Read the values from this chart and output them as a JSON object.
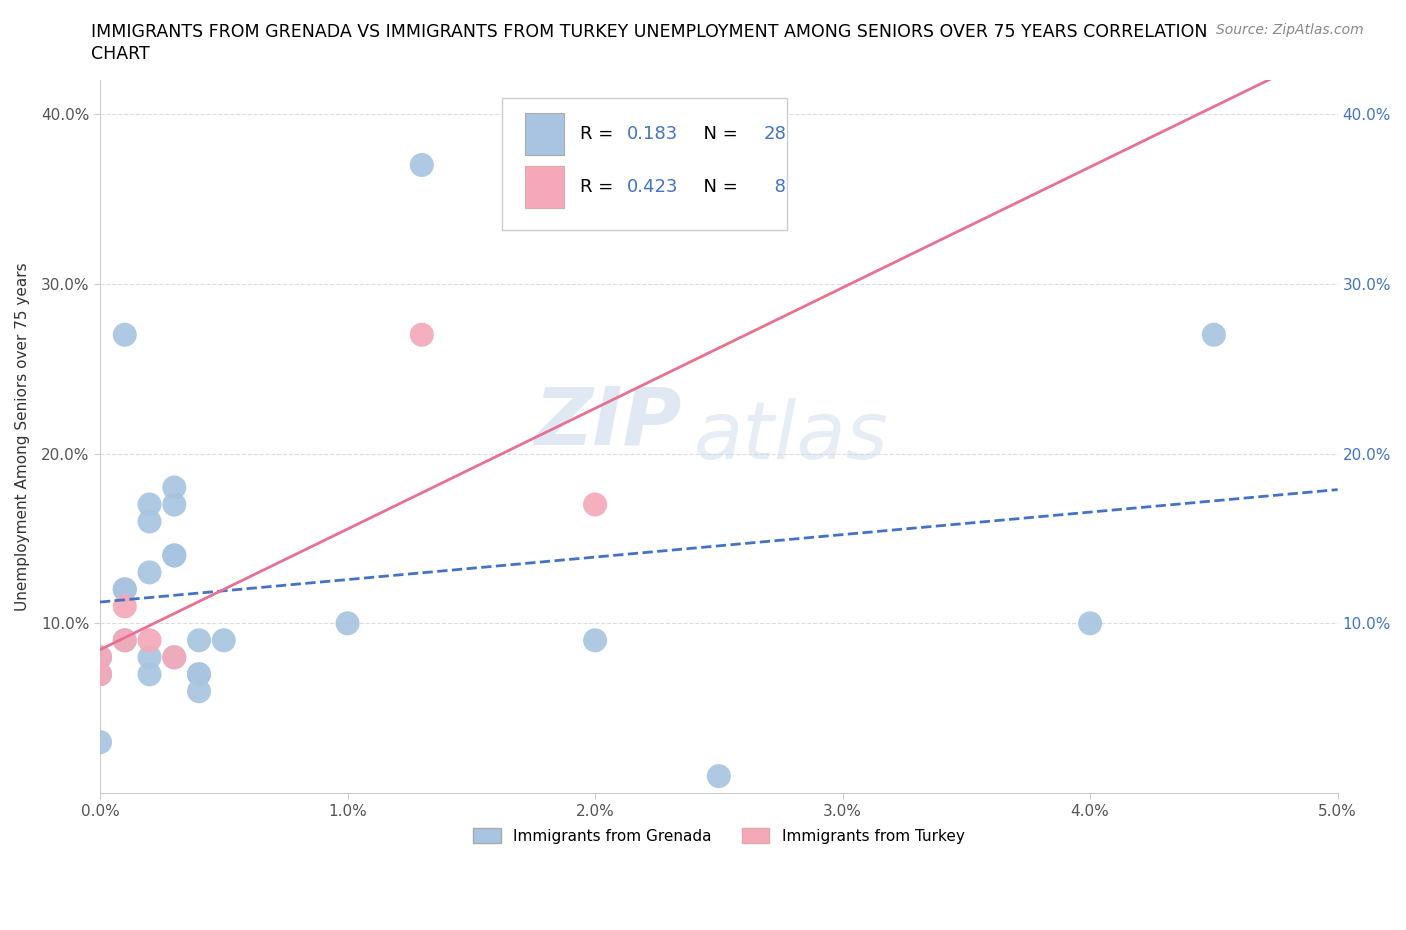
{
  "title_line1": "IMMIGRANTS FROM GRENADA VS IMMIGRANTS FROM TURKEY UNEMPLOYMENT AMONG SENIORS OVER 75 YEARS CORRELATION",
  "title_line2": "CHART",
  "source": "Source: ZipAtlas.com",
  "ylabel": "Unemployment Among Seniors over 75 years",
  "xlim": [
    0.0,
    0.05
  ],
  "ylim": [
    0.0,
    0.42
  ],
  "xticks": [
    0.0,
    0.01,
    0.02,
    0.03,
    0.04,
    0.05
  ],
  "xticklabels": [
    "0.0%",
    "1.0%",
    "2.0%",
    "3.0%",
    "4.0%",
    "5.0%"
  ],
  "yticks": [
    0.1,
    0.2,
    0.3,
    0.4
  ],
  "yticklabels": [
    "10.0%",
    "20.0%",
    "30.0%",
    "40.0%"
  ],
  "grenada_color": "#a8c4e0",
  "turkey_color": "#f4a8b8",
  "grenada_line_color": "#4472c4",
  "turkey_line_color": "#e87090",
  "R_grenada": 0.183,
  "N_grenada": 28,
  "R_turkey": 0.423,
  "N_turkey": 8,
  "watermark_top": "ZIP",
  "watermark_bottom": "atlas",
  "grenada_x": [
    0.0,
    0.0,
    0.0,
    0.001,
    0.001,
    0.001,
    0.001,
    0.002,
    0.002,
    0.002,
    0.002,
    0.002,
    0.003,
    0.003,
    0.003,
    0.003,
    0.003,
    0.004,
    0.004,
    0.004,
    0.004,
    0.005,
    0.01,
    0.013,
    0.02,
    0.025,
    0.04,
    0.045
  ],
  "grenada_y": [
    0.08,
    0.07,
    0.03,
    0.27,
    0.12,
    0.12,
    0.09,
    0.17,
    0.16,
    0.13,
    0.08,
    0.07,
    0.18,
    0.17,
    0.14,
    0.14,
    0.08,
    0.09,
    0.07,
    0.07,
    0.06,
    0.09,
    0.1,
    0.37,
    0.09,
    0.01,
    0.1,
    0.27
  ],
  "turkey_x": [
    0.0,
    0.0,
    0.001,
    0.001,
    0.002,
    0.003,
    0.013,
    0.02
  ],
  "turkey_y": [
    0.08,
    0.07,
    0.11,
    0.09,
    0.09,
    0.08,
    0.27,
    0.17
  ],
  "background_color": "#ffffff",
  "grid_color": "#dddddd",
  "right_ytick_color": "#4472c4"
}
